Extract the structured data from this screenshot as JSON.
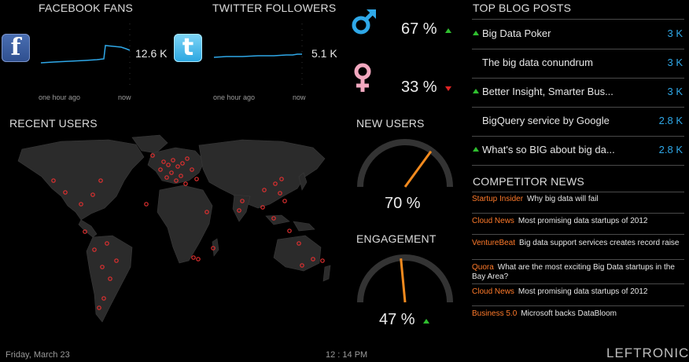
{
  "facebook": {
    "title": "FACEBOOK FANS",
    "value": "12.6 K",
    "x_start": "one hour ago",
    "x_end": "now",
    "icon": "facebook-icon",
    "line_color": "#2fa8e8"
  },
  "twitter": {
    "title": "TWITTER FOLLOWERS",
    "value": "5.1 K",
    "x_start": "one hour ago",
    "x_end": "now",
    "icon": "twitter-icon",
    "line_color": "#2fa8e8"
  },
  "gender": {
    "male_pct": "67 %",
    "female_pct": "33 %",
    "male_color": "#2fa8e8",
    "female_color": "#f2a8bf",
    "male_trend": "up",
    "female_trend": "down"
  },
  "recent_users": {
    "title": "RECENT USERS"
  },
  "new_users": {
    "title": "NEW USERS",
    "value": 70,
    "value_text": "70 %"
  },
  "engagement": {
    "title": "ENGAGEMENT",
    "value": 47,
    "value_text": "47 %",
    "trend": "up"
  },
  "top_blog_posts": {
    "title": "TOP BLOG POSTS",
    "items": [
      {
        "label": "Big Data Poker",
        "count": "3 K",
        "trend": "up"
      },
      {
        "label": "The big data conundrum",
        "count": "3 K",
        "trend": "none"
      },
      {
        "label": "Better Insight, Smarter Bus...",
        "count": "3 K",
        "trend": "up"
      },
      {
        "label": "BigQuery service by Google",
        "count": "2.8 K",
        "trend": "none"
      },
      {
        "label": "What's so BIG about big da...",
        "count": "2.8 K",
        "trend": "up"
      }
    ]
  },
  "competitor_news": {
    "title": "COMPETITOR NEWS",
    "items": [
      {
        "source": "Startup Insider",
        "text": "Why big data will fail"
      },
      {
        "source": "Cloud News",
        "text": "Most promising data startups of 2012"
      },
      {
        "source": "VentureBeat",
        "text": "Big data support services creates record raise"
      },
      {
        "source": "Quora",
        "text": "What are the most exciting Big Data startups in the Bay Area?"
      },
      {
        "source": "Cloud News",
        "text": "Most promising data startups of 2012"
      },
      {
        "source": "Business 5.0",
        "text": "Microsoft backs DataBloom"
      }
    ]
  },
  "footer": {
    "date": "Friday, March 23",
    "time": "12 : 14 PM",
    "brand": "LEFTRONIC"
  },
  "colors": {
    "accent": "#2fa8e8",
    "gauge_needle": "#f28a1e",
    "news_source": "#ff7a2a",
    "up": "#2fbf2f",
    "down": "#e02424"
  }
}
